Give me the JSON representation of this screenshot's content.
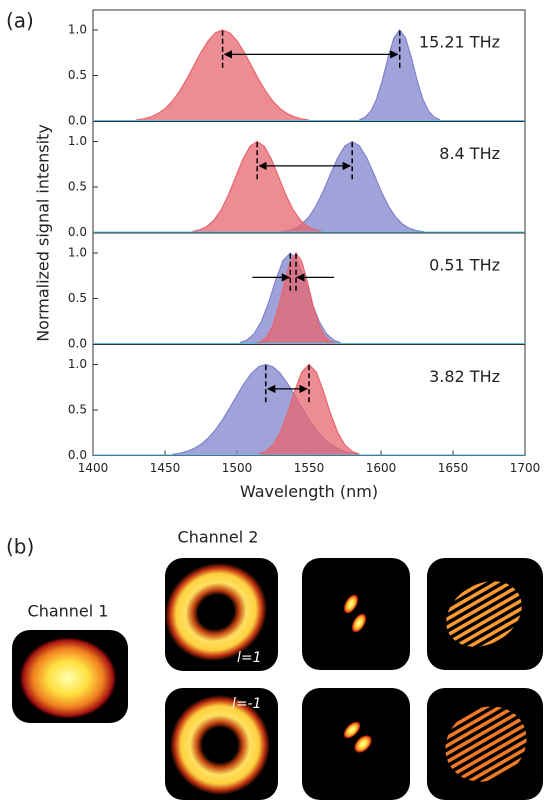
{
  "panel_labels": {
    "a": "(a)",
    "b": "(b)"
  },
  "chart_data": [
    {
      "type": "area",
      "annotation": "15.21 THz",
      "ylabel": "Normalized signal intensity",
      "xlim": [
        1400,
        1700
      ],
      "ylim": [
        0,
        1.22
      ],
      "yticks": [
        {
          "value": 0,
          "label": "0.0"
        },
        {
          "value": 0.5,
          "label": "0.5"
        },
        {
          "value": 1,
          "label": "1.0"
        }
      ],
      "series": [
        {
          "color": "#7f84cc",
          "x": [
            1585,
            1589,
            1593,
            1597,
            1601,
            1605,
            1609,
            1613,
            1617,
            1621,
            1625,
            1629,
            1633,
            1637,
            1641
          ],
          "values": [
            0.013,
            0.041,
            0.109,
            0.242,
            0.45,
            0.701,
            0.915,
            1,
            0.915,
            0.701,
            0.45,
            0.242,
            0.109,
            0.041,
            0.013
          ]
        },
        {
          "color": "#e8656f",
          "x": [
            1430,
            1435,
            1440,
            1445,
            1450,
            1455,
            1460,
            1465,
            1470,
            1475,
            1480,
            1485,
            1490,
            1495,
            1500,
            1505,
            1510,
            1515,
            1520,
            1525,
            1530,
            1535,
            1540,
            1545,
            1550
          ],
          "values": [
            0.011,
            0.023,
            0.044,
            0.08,
            0.135,
            0.216,
            0.325,
            0.458,
            0.607,
            0.755,
            0.882,
            0.969,
            1,
            0.969,
            0.882,
            0.755,
            0.607,
            0.458,
            0.325,
            0.216,
            0.135,
            0.08,
            0.044,
            0.023,
            0.011
          ]
        }
      ]
    },
    {
      "type": "area",
      "annotation": "8.4 THz",
      "xlim": [
        1400,
        1700
      ],
      "ylim": [
        0,
        1.22
      ],
      "yticks": [
        {
          "value": 0,
          "label": "0.0"
        },
        {
          "value": 0.5,
          "label": "0.5"
        },
        {
          "value": 1,
          "label": "1.0"
        }
      ],
      "series": [
        {
          "color": "#7f84cc",
          "x": [
            1530,
            1535,
            1540,
            1545,
            1550,
            1555,
            1560,
            1565,
            1570,
            1575,
            1580,
            1585,
            1590,
            1595,
            1600,
            1605,
            1610,
            1615,
            1620,
            1625,
            1630
          ],
          "values": [
            0.008,
            0.019,
            0.044,
            0.091,
            0.172,
            0.295,
            0.458,
            0.644,
            0.823,
            0.952,
            1,
            0.952,
            0.823,
            0.644,
            0.458,
            0.295,
            0.172,
            0.091,
            0.044,
            0.019,
            0.008
          ]
        },
        {
          "color": "#e8656f",
          "x": [
            1469,
            1474,
            1479,
            1484,
            1489,
            1494,
            1499,
            1504,
            1509,
            1514,
            1519,
            1524,
            1529,
            1534,
            1539,
            1544,
            1549,
            1554,
            1559
          ],
          "values": [
            0.011,
            0.029,
            0.066,
            0.135,
            0.249,
            0.411,
            0.607,
            0.801,
            0.946,
            1,
            0.946,
            0.801,
            0.607,
            0.411,
            0.249,
            0.135,
            0.066,
            0.029,
            0.011
          ]
        }
      ]
    },
    {
      "type": "area",
      "annotation": "0.51 THz",
      "xlim": [
        1400,
        1700
      ],
      "ylim": [
        0,
        1.22
      ],
      "yticks": [
        {
          "value": 0,
          "label": "0.0"
        },
        {
          "value": 0.5,
          "label": "0.5"
        },
        {
          "value": 1,
          "label": "1.0"
        }
      ],
      "series": [
        {
          "color": "#7f84cc",
          "x": [
            1502,
            1507,
            1512,
            1517,
            1522,
            1527,
            1532,
            1537,
            1542,
            1547,
            1552,
            1557,
            1562,
            1567,
            1572
          ],
          "values": [
            0.014,
            0.044,
            0.114,
            0.249,
            0.458,
            0.707,
            0.917,
            1,
            0.917,
            0.707,
            0.458,
            0.249,
            0.114,
            0.044,
            0.014
          ]
        },
        {
          "color": "#e8656f",
          "x": [
            1513,
            1517,
            1521,
            1525,
            1529,
            1533,
            1537,
            1541,
            1545,
            1549,
            1553,
            1557,
            1561,
            1565,
            1569
          ],
          "values": [
            0.008,
            0.029,
            0.085,
            0.206,
            0.411,
            0.674,
            0.906,
            1,
            0.906,
            0.674,
            0.411,
            0.206,
            0.085,
            0.029,
            0.008
          ]
        }
      ]
    },
    {
      "type": "area",
      "annotation": "3.82 THz",
      "xlabel": "Wavelength (nm)",
      "xlim": [
        1400,
        1700
      ],
      "ylim": [
        0,
        1.22
      ],
      "xticks": [
        1400,
        1450,
        1500,
        1550,
        1600,
        1650,
        1700
      ],
      "yticks": [
        {
          "value": 0,
          "label": "0.0"
        },
        {
          "value": 0.5,
          "label": "0.5"
        },
        {
          "value": 1,
          "label": "1.0"
        }
      ],
      "series": [
        {
          "color": "#7f84cc",
          "x": [
            1455,
            1460,
            1465,
            1470,
            1475,
            1480,
            1485,
            1490,
            1495,
            1500,
            1505,
            1510,
            1515,
            1520,
            1525,
            1530,
            1535,
            1540,
            1545,
            1550,
            1555,
            1560,
            1565,
            1570,
            1575,
            1580,
            1585
          ],
          "values": [
            0.013,
            0.024,
            0.044,
            0.076,
            0.123,
            0.191,
            0.282,
            0.395,
            0.524,
            0.661,
            0.793,
            0.902,
            0.975,
            1,
            0.975,
            0.902,
            0.793,
            0.661,
            0.524,
            0.395,
            0.282,
            0.191,
            0.123,
            0.076,
            0.044,
            0.024,
            0.013
          ]
        },
        {
          "color": "#e8656f",
          "x": [
            1515,
            1520,
            1525,
            1530,
            1535,
            1540,
            1545,
            1550,
            1555,
            1560,
            1565,
            1570,
            1575,
            1580,
            1585
          ],
          "values": [
            0.014,
            0.044,
            0.114,
            0.249,
            0.458,
            0.707,
            0.917,
            1,
            0.917,
            0.707,
            0.458,
            0.249,
            0.114,
            0.044,
            0.014
          ]
        }
      ]
    }
  ],
  "images": {
    "channel_1": "Channel 1",
    "channel_2": "Channel 2",
    "mode_labels": [
      "l=1",
      "l=-1"
    ]
  }
}
